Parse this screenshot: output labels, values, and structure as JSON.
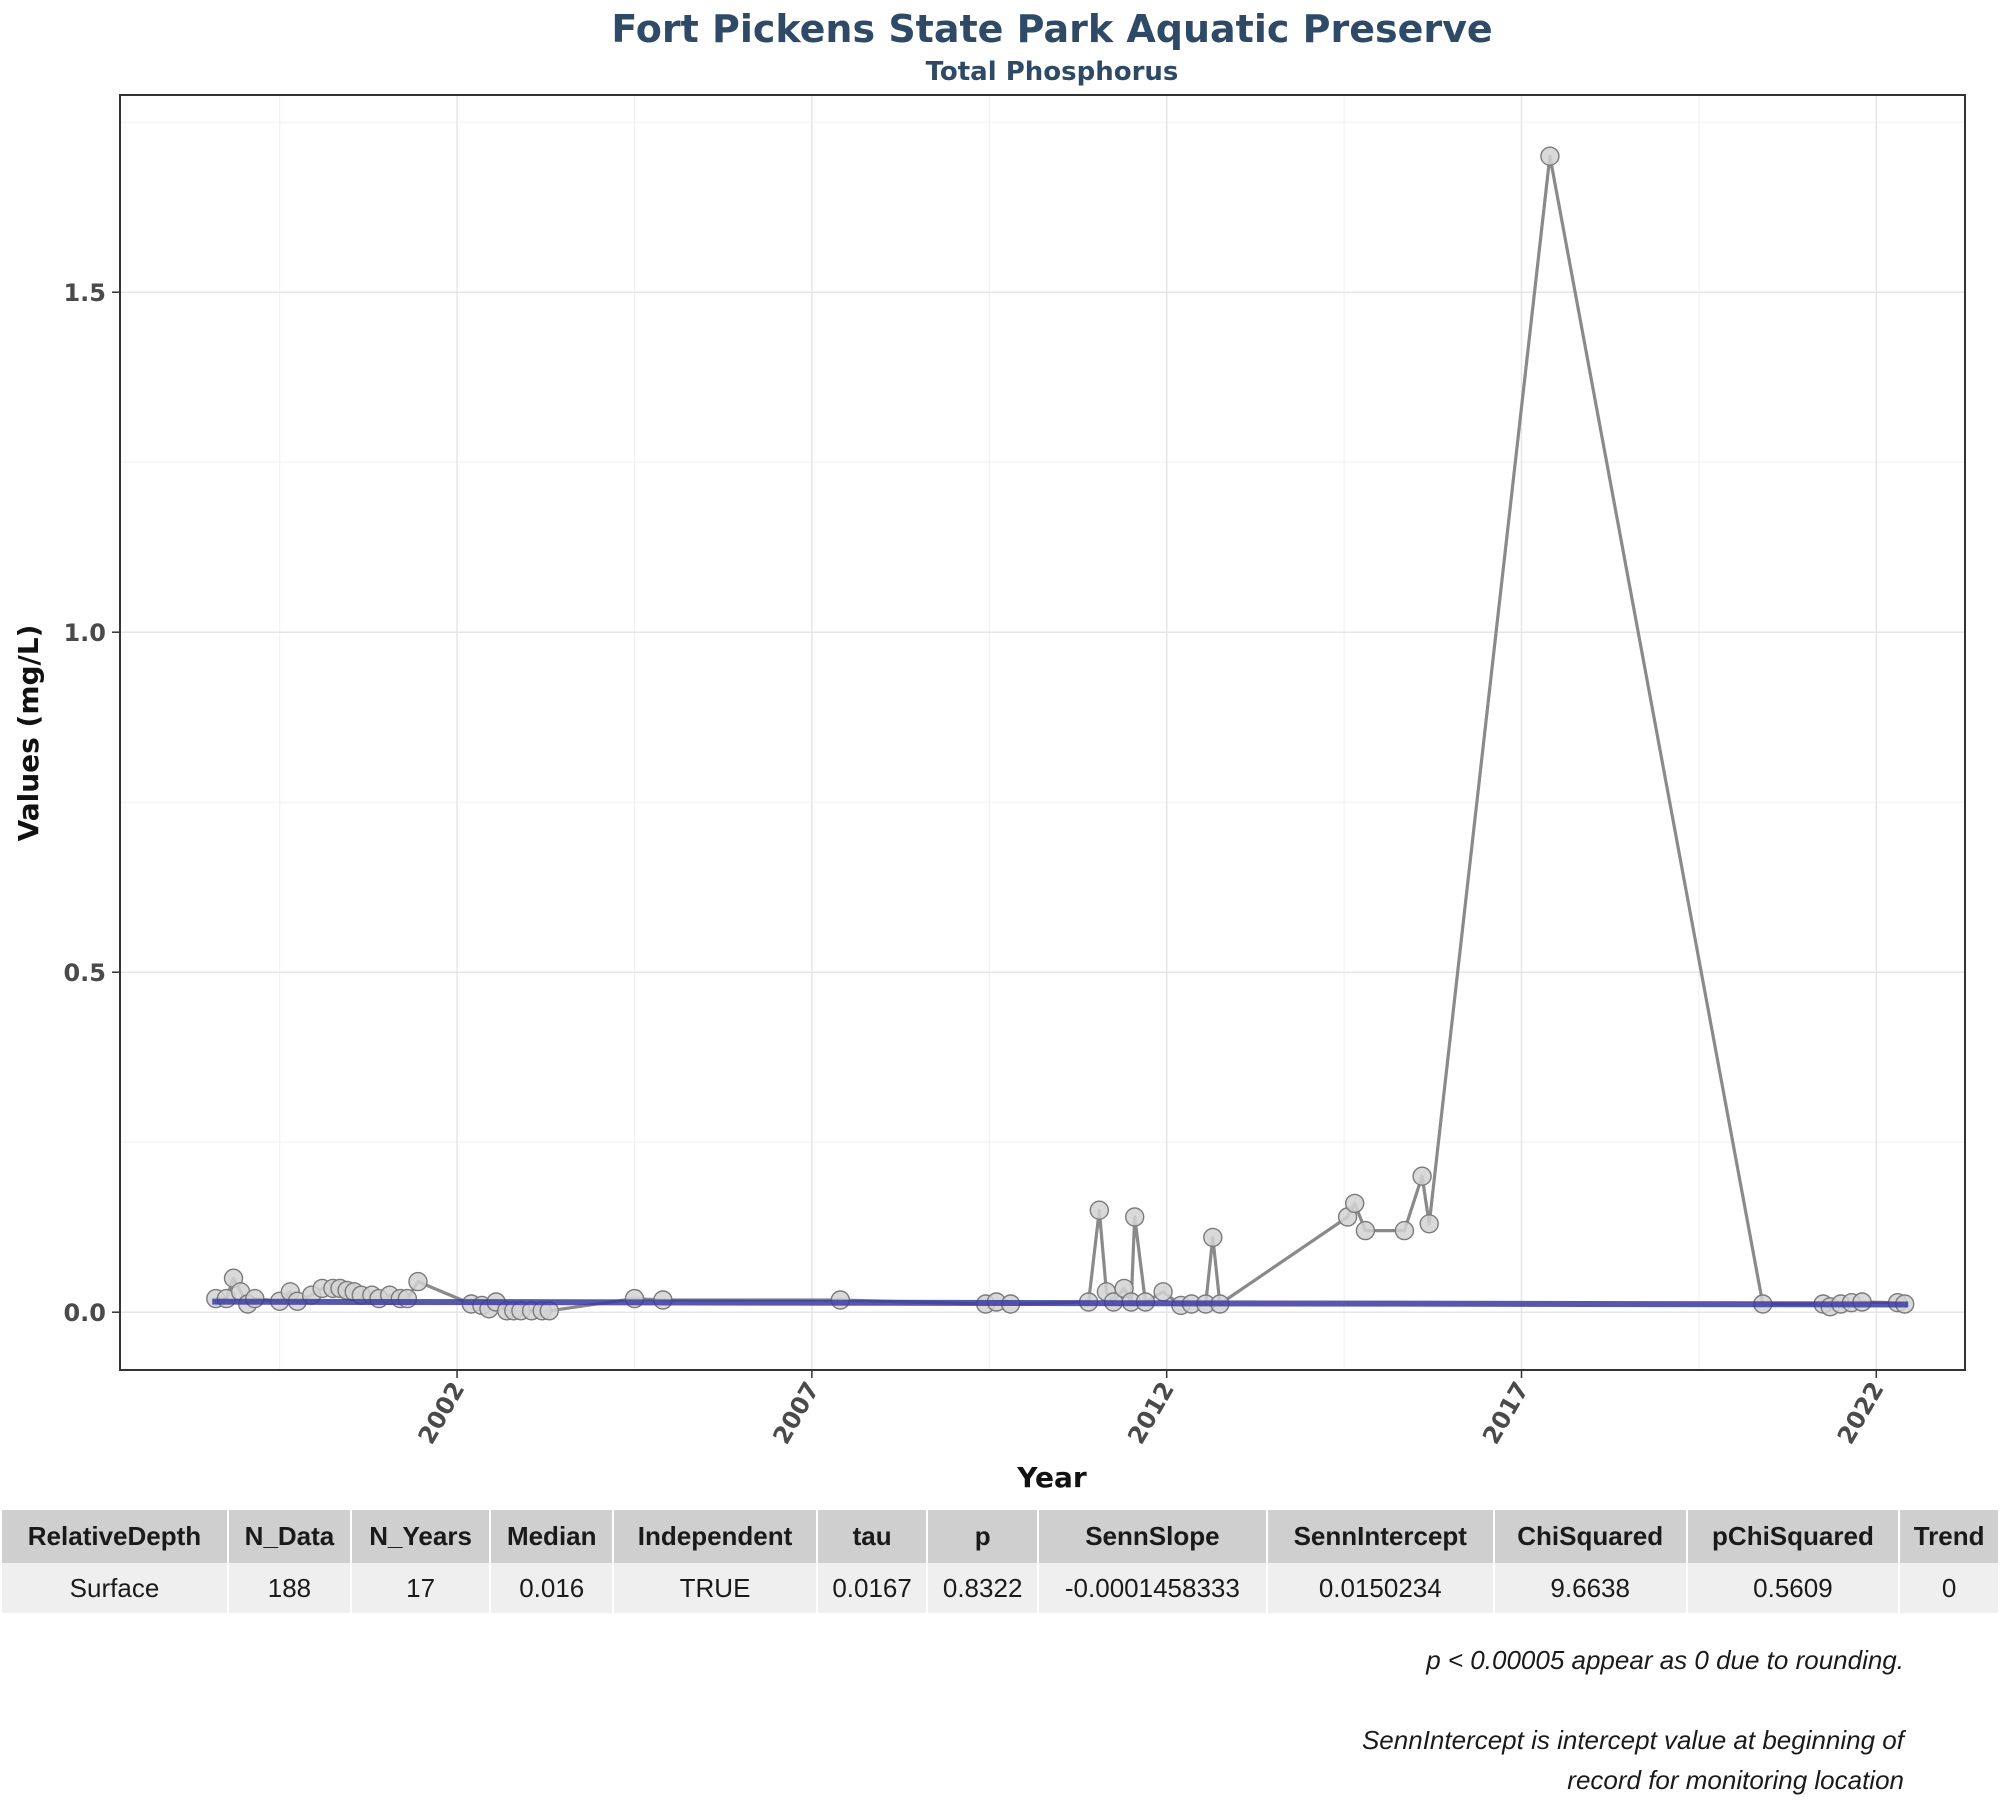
{
  "chart_data": {
    "type": "line",
    "title": "Fort Pickens State Park Aquatic Preserve",
    "subtitle": "Total Phosphorus",
    "xlabel": "Year",
    "ylabel": "Values (mg/L)",
    "xlim": [
      1997.25,
      2023.25
    ],
    "ylim": [
      -0.085,
      1.79
    ],
    "x_ticks": [
      2002,
      2007,
      2012,
      2017,
      2022
    ],
    "y_ticks": [
      0.0,
      0.5,
      1.0,
      1.5
    ],
    "y_tick_labels": [
      "0.0",
      "0.5",
      "1.0",
      "1.5"
    ],
    "grid": true,
    "colors": {
      "line": "#8a8a8a",
      "point_fill": "#d2d2d2",
      "point_stroke": "#7a7a7a",
      "trend": "#3a3aa0",
      "title": "#2e4a66"
    },
    "series": [
      {
        "x": [
          1998.6,
          1998.75,
          1998.85,
          1998.95,
          1999.05,
          1999.15,
          1999.5,
          1999.65,
          1999.75,
          1999.95,
          2000.1,
          2000.25,
          2000.35,
          2000.45,
          2000.55,
          2000.65,
          2000.8,
          2000.9,
          2001.05,
          2001.2,
          2001.3,
          2001.45,
          2002.2,
          2002.35,
          2002.45,
          2002.55,
          2002.7,
          2002.8,
          2002.9,
          2003.05,
          2003.2,
          2003.3,
          2004.5,
          2004.9,
          2007.4,
          2009.45,
          2009.6,
          2009.8,
          2010.9,
          2011.05,
          2011.15,
          2011.25,
          2011.4,
          2011.5,
          2011.55,
          2011.7,
          2011.95,
          2012.2,
          2012.35,
          2012.55,
          2012.65,
          2012.75,
          2014.55,
          2014.65,
          2014.8,
          2015.35,
          2015.6,
          2015.7,
          2017.4,
          2020.4,
          2021.25,
          2021.35,
          2021.5,
          2021.65,
          2021.8,
          2022.3,
          2022.4
        ],
        "values": [
          0.02,
          0.02,
          0.05,
          0.03,
          0.012,
          0.02,
          0.016,
          0.03,
          0.016,
          0.025,
          0.035,
          0.035,
          0.035,
          0.032,
          0.03,
          0.025,
          0.025,
          0.02,
          0.025,
          0.02,
          0.02,
          0.045,
          0.012,
          0.01,
          0.005,
          0.015,
          0.002,
          0.002,
          0.002,
          0.002,
          0.002,
          0.002,
          0.02,
          0.018,
          0.018,
          0.012,
          0.015,
          0.012,
          0.015,
          0.15,
          0.03,
          0.015,
          0.035,
          0.015,
          0.14,
          0.015,
          0.03,
          0.01,
          0.012,
          0.012,
          0.11,
          0.012,
          0.14,
          0.16,
          0.12,
          0.12,
          0.2,
          0.13,
          1.7,
          0.012,
          0.012,
          0.008,
          0.012,
          0.014,
          0.015,
          0.014,
          0.012
        ]
      }
    ],
    "trend_line": {
      "x": [
        1998.55,
        2022.45
      ],
      "values": [
        0.0155,
        0.0113
      ]
    }
  },
  "table": {
    "headers": [
      "RelativeDepth",
      "N_Data",
      "N_Years",
      "Median",
      "Independent",
      "tau",
      "p",
      "SennSlope",
      "SennIntercept",
      "ChiSquared",
      "pChiSquared",
      "Trend"
    ],
    "rows": [
      [
        "Surface",
        "188",
        "17",
        "0.016",
        "TRUE",
        "0.0167",
        "0.8322",
        "-0.0001458333",
        "0.0150234",
        "9.6638",
        "0.5609",
        "0"
      ]
    ]
  },
  "notes": {
    "rounding": "p < 0.00005 appear as 0 due to rounding.",
    "intercept_line1": "SennIntercept is intercept value at beginning of",
    "intercept_line2": "record for monitoring location"
  }
}
